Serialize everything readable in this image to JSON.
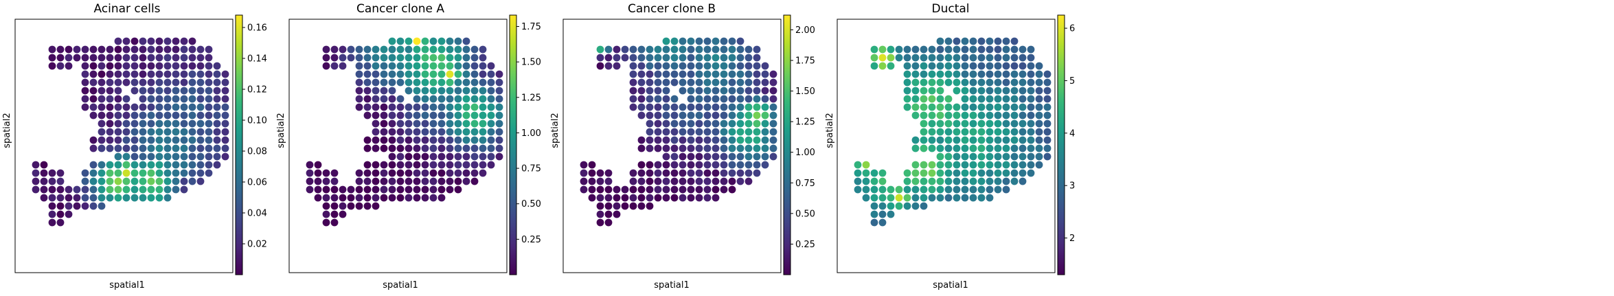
{
  "colormap": {
    "name": "viridis",
    "stops": [
      "#440154",
      "#482878",
      "#3e4a89",
      "#31688e",
      "#26828e",
      "#1f9e89",
      "#35b779",
      "#6ece58",
      "#b5de2b",
      "#fde725"
    ]
  },
  "chart_data": [
    {
      "type": "scatter",
      "title": "Acinar cells",
      "xlabel": "spatial1",
      "ylabel": "spatial2",
      "colorbar": {
        "min": 0.0,
        "max": 0.168,
        "ticks": [
          0.02,
          0.04,
          0.06,
          0.08,
          0.1,
          0.12,
          0.14,
          0.16
        ],
        "tick_labels": [
          "0.02",
          "0.04",
          "0.06",
          "0.08",
          "0.10",
          "0.12",
          "0.14",
          "0.16"
        ]
      },
      "hotspots": [
        {
          "col": 11,
          "row": 16,
          "value": 0.16,
          "radius": 1.2
        },
        {
          "col": 10,
          "row": 17,
          "value": 0.13,
          "radius": 2.5
        },
        {
          "col": 14,
          "row": 17,
          "value": 0.12,
          "radius": 2.5
        },
        {
          "col": 16,
          "row": 13,
          "value": 0.07,
          "radius": 4
        },
        {
          "col": 18,
          "row": 10,
          "value": 0.05,
          "radius": 5
        }
      ],
      "base_value": 0.008
    },
    {
      "type": "scatter",
      "title": "Cancer clone A",
      "xlabel": "spatial1",
      "ylabel": "spatial2",
      "colorbar": {
        "min": 0.0,
        "max": 1.83,
        "ticks": [
          0.25,
          0.5,
          0.75,
          1.0,
          1.25,
          1.5,
          1.75
        ],
        "tick_labels": [
          "0.25",
          "0.50",
          "0.75",
          "1.00",
          "1.25",
          "1.50",
          "1.75"
        ]
      },
      "hotspots": [
        {
          "col": 13,
          "row": 0,
          "value": 1.8,
          "radius": 1
        },
        {
          "col": 17,
          "row": 4,
          "value": 1.75,
          "radius": 1.2
        },
        {
          "col": 15,
          "row": 3,
          "value": 1.3,
          "radius": 3.5
        },
        {
          "col": 20,
          "row": 9,
          "value": 1.2,
          "radius": 3
        },
        {
          "col": 10,
          "row": 1,
          "value": 0.9,
          "radius": 3.5
        },
        {
          "col": 16,
          "row": 7,
          "value": 0.6,
          "radius": 4
        }
      ],
      "base_value": 0.03
    },
    {
      "type": "scatter",
      "title": "Cancer clone B",
      "xlabel": "spatial1",
      "ylabel": "spatial2",
      "colorbar": {
        "min": 0.0,
        "max": 2.12,
        "ticks": [
          0.25,
          0.5,
          0.75,
          1.0,
          1.25,
          1.5,
          1.75,
          2.0
        ],
        "tick_labels": [
          "0.25",
          "0.50",
          "0.75",
          "1.00",
          "1.25",
          "1.50",
          "1.75",
          "2.00"
        ]
      },
      "hotspots": [
        {
          "col": 2,
          "row": 0,
          "value": 2.1,
          "radius": 1
        },
        {
          "col": 21,
          "row": 9,
          "value": 1.8,
          "radius": 1.5
        },
        {
          "col": 20,
          "row": 11,
          "value": 1.3,
          "radius": 3
        },
        {
          "col": 10,
          "row": 0,
          "value": 1.0,
          "radius": 3.5
        },
        {
          "col": 16,
          "row": 3,
          "value": 0.9,
          "radius": 4
        },
        {
          "col": 13,
          "row": 7,
          "value": 0.6,
          "radius": 5
        }
      ],
      "base_value": 0.03
    },
    {
      "type": "scatter",
      "title": "Ductal",
      "xlabel": "spatial1",
      "ylabel": "spatial2",
      "colorbar": {
        "min": 1.3,
        "max": 6.25,
        "ticks": [
          2,
          3,
          4,
          5,
          6
        ],
        "tick_labels": [
          "2",
          "3",
          "4",
          "5",
          "6"
        ]
      },
      "hotspots": [
        {
          "col": 3,
          "row": 2,
          "value": 6.1,
          "radius": 1.2
        },
        {
          "col": 5,
          "row": 19,
          "value": 6.1,
          "radius": 1
        },
        {
          "col": 1,
          "row": 15,
          "value": 5.6,
          "radius": 1
        },
        {
          "col": 8,
          "row": 15,
          "value": 5.2,
          "radius": 3
        },
        {
          "col": 9,
          "row": 8,
          "value": 4.8,
          "radius": 4
        },
        {
          "col": 14,
          "row": 12,
          "value": 4.2,
          "radius": 5
        },
        {
          "col": 4,
          "row": 17,
          "value": 4.6,
          "radius": 3
        }
      ],
      "base_value": 2.6
    }
  ]
}
